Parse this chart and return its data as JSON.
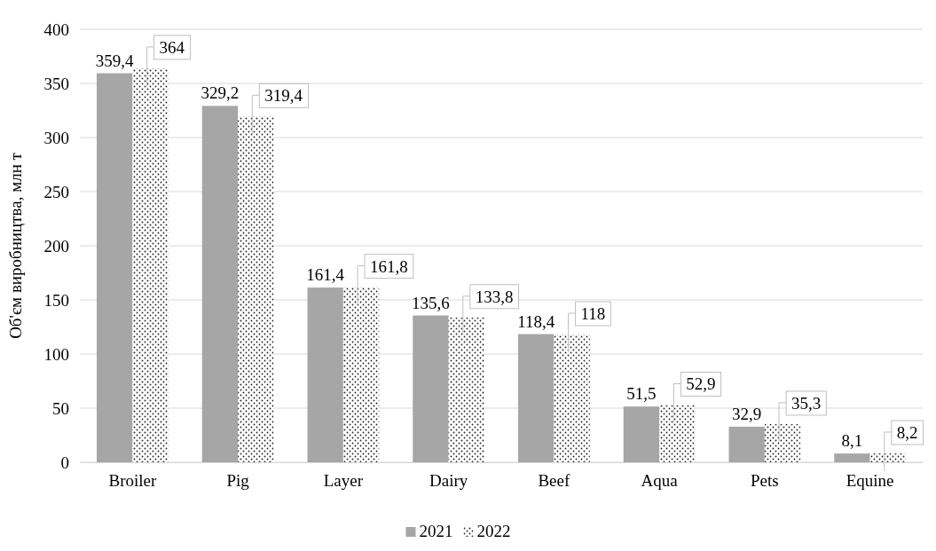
{
  "chart_data": {
    "type": "bar",
    "ylabel": "Об'єм виробництва, млн т",
    "categories": [
      "Broiler",
      "Pig",
      "Layer",
      "Dairy",
      "Beef",
      "Aqua",
      "Pets",
      "Equine"
    ],
    "series": [
      {
        "name": "2021",
        "color": "#a6a6a6",
        "values": [
          359.4,
          329.2,
          161.4,
          135.6,
          118.4,
          51.5,
          32.9,
          8.1
        ],
        "value_labels": [
          "359,4",
          "329,2",
          "161,4",
          "135,6",
          "118,4",
          "51,5",
          "32,9",
          "8,1"
        ]
      },
      {
        "name": "2022",
        "color": "#ffffff",
        "values": [
          364,
          319.4,
          161.8,
          133.8,
          118,
          52.9,
          35.3,
          8.2
        ],
        "value_labels": [
          "364",
          "319,4",
          "161,8",
          "133,8",
          "118",
          "52,9",
          "35,3",
          "8,2"
        ]
      }
    ],
    "ylim": [
      0,
      400
    ],
    "yticks": [
      0,
      50,
      100,
      150,
      200,
      250,
      300,
      350,
      400
    ],
    "grid": "y",
    "legend": "bottom"
  }
}
